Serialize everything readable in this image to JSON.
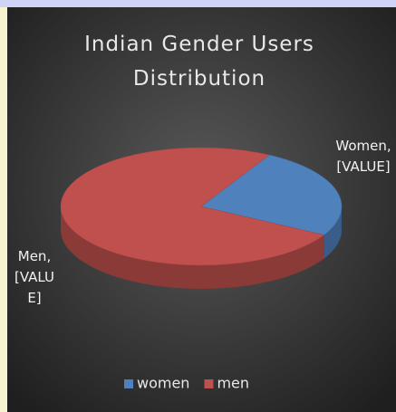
{
  "chart_data": {
    "type": "pie3d",
    "title": "Indian Gender Users Distribution",
    "categories": [
      "women",
      "men"
    ],
    "values": [
      25,
      75
    ],
    "value_labels": [
      "Women, [VALUE]",
      "Men, [VALUE]"
    ],
    "colors": [
      "#4f81bd",
      "#c0504d"
    ],
    "legend": "bottom"
  }
}
